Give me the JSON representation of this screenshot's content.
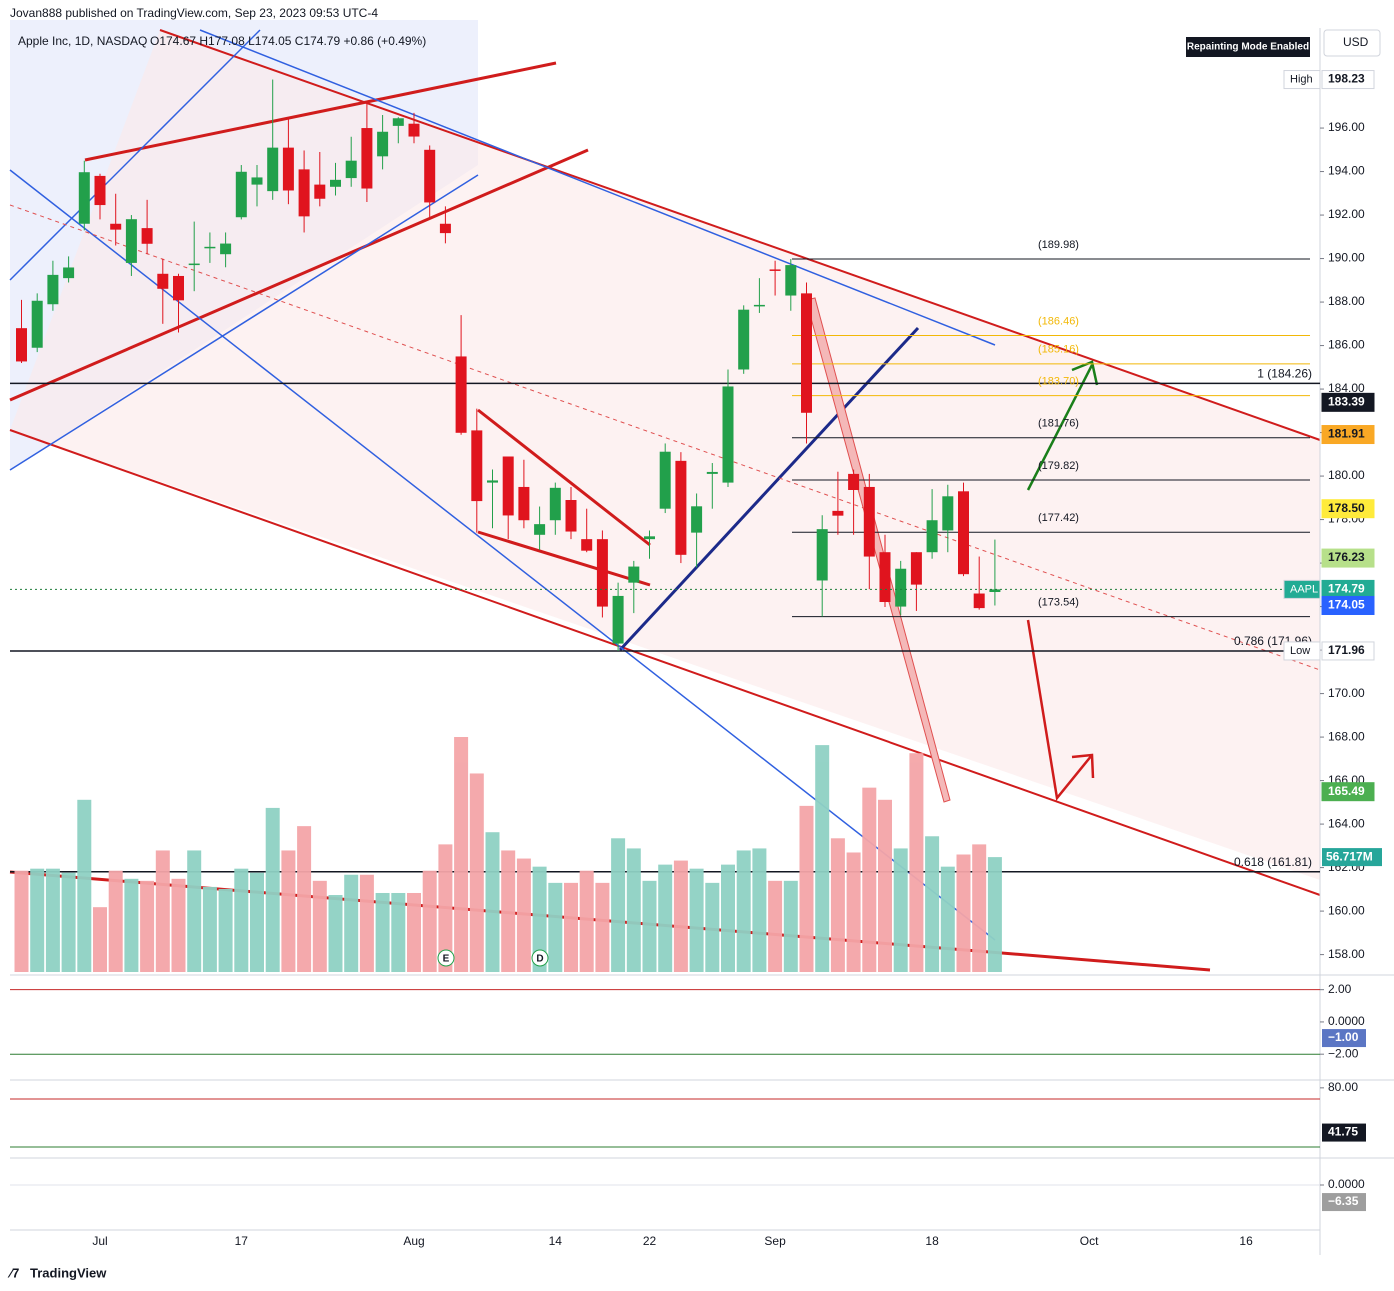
{
  "header": {
    "publisher": "Jovan888 published on TradingView.com, Sep 23, 2023 09:53 UTC-4",
    "symbol": "Apple Inc, 1D, NASDAQ",
    "ohlc": "O174.67 H177.08 L174.05 C174.79 +0.86 (+0.49%)",
    "badge": "Repainting Mode Enabled",
    "currency": "USD",
    "footer": "TradingView"
  },
  "chart_data": {
    "type": "candlestick",
    "up_color": "#22a04b",
    "down_color": "#e0141e",
    "volume_up_color": "#8fd1c4",
    "volume_down_color": "#f4a5a8",
    "categories": [
      null,
      null,
      null,
      null,
      null,
      "Jul",
      null,
      null,
      null,
      null,
      null,
      null,
      null,
      null,
      "17",
      null,
      null,
      null,
      null,
      null,
      null,
      null,
      null,
      null,
      null,
      "Aug",
      null,
      null,
      null,
      null,
      null,
      null,
      null,
      null,
      "14",
      null,
      null,
      null,
      null,
      null,
      "22",
      null,
      null,
      null,
      null,
      null,
      null,
      null,
      "Sep",
      null,
      null,
      null,
      null,
      null,
      null,
      null,
      null,
      null,
      "18",
      null,
      null,
      null,
      null,
      null,
      null,
      null,
      null,
      null,
      "Oct",
      null,
      null,
      null,
      null,
      null,
      null,
      null,
      null,
      null,
      "16"
    ],
    "open": [
      186.8,
      185.9,
      187.9,
      189.1,
      191.6,
      193.8,
      191.6,
      189.8,
      191.4,
      189.3,
      189.2,
      189.7,
      190.5,
      190.2,
      191.9,
      193.4,
      193.1,
      195.1,
      194.1,
      193.4,
      193.3,
      193.7,
      196.0,
      194.7,
      196.1,
      196.2,
      195.0,
      191.6,
      185.5,
      182.1,
      179.7,
      180.9,
      179.5,
      177.3,
      177.97,
      178.9,
      177.1,
      177.1,
      172.3,
      175.1,
      177.1,
      178.5,
      180.7,
      177.4,
      180.1,
      179.7,
      184.9,
      187.8,
      189.5,
      188.3,
      188.4,
      175.2,
      178.4,
      180.1,
      179.5,
      176.5,
      174.0,
      176.5,
      176.5,
      177.5,
      179.3,
      174.6,
      174.67,
      null,
      null,
      null,
      null,
      null,
      null,
      null,
      null,
      null,
      null,
      null,
      null,
      null,
      null,
      null,
      null
    ],
    "high": [
      188.1,
      188.4,
      189.9,
      190.1,
      194.5,
      193.9,
      192.98,
      192.0,
      192.7,
      189.99,
      189.3,
      191.7,
      191.2,
      191.2,
      194.3,
      194.3,
      198.23,
      196.5,
      194.97,
      194.9,
      194.4,
      195.6,
      197.2,
      196.6,
      196.5,
      196.7,
      195.2,
      192.4,
      187.4,
      183.1,
      180.3,
      180.9,
      180.75,
      178.6,
      179.7,
      179.5,
      178.5,
      177.5,
      175.1,
      176.1,
      177.5,
      181.5,
      181.1,
      179.2,
      180.6,
      184.9,
      187.85,
      189.1,
      189.9,
      189.98,
      188.9,
      178.2,
      180.2,
      180.3,
      180.1,
      177.3,
      176.1,
      176.5,
      179.4,
      179.6,
      179.7,
      176.3,
      177.08,
      null,
      null,
      null,
      null,
      null,
      null,
      null,
      null,
      null,
      null,
      null,
      null,
      null,
      null,
      null,
      null
    ],
    "low": [
      185.2,
      185.7,
      187.6,
      188.9,
      191.3,
      191.8,
      190.6,
      189.2,
      190.2,
      187.0,
      186.6,
      188.5,
      189.8,
      189.6,
      191.8,
      192.4,
      192.7,
      192.5,
      191.2,
      192.4,
      192.9,
      193.3,
      192.6,
      194.1,
      195.3,
      195.3,
      191.9,
      190.7,
      181.9,
      177.4,
      177.6,
      177.1,
      177.6,
      176.6,
      177.3,
      177.1,
      176.5,
      173.5,
      171.96,
      173.7,
      176.2,
      178.3,
      176.0,
      175.8,
      178.5,
      179.5,
      184.7,
      187.5,
      188.3,
      187.6,
      181.5,
      173.54,
      177.3,
      177.3,
      174.8,
      173.98,
      173.6,
      173.8,
      176.2,
      176.5,
      175.4,
      173.86,
      174.05,
      null,
      null,
      null,
      null,
      null,
      null,
      null,
      null,
      null,
      null,
      null,
      null,
      null,
      null,
      null,
      null
    ],
    "close": [
      185.27,
      188.06,
      189.25,
      189.59,
      193.97,
      192.46,
      191.33,
      191.81,
      190.68,
      188.61,
      188.08,
      189.77,
      190.54,
      190.69,
      193.99,
      193.73,
      195.1,
      193.13,
      191.94,
      192.75,
      193.62,
      194.5,
      193.22,
      195.83,
      196.45,
      195.61,
      192.58,
      191.17,
      181.99,
      178.85,
      179.8,
      178.19,
      177.97,
      177.79,
      179.46,
      177.45,
      176.57,
      174.0,
      174.49,
      175.84,
      177.23,
      181.12,
      176.38,
      178.61,
      180.19,
      184.12,
      187.65,
      187.87,
      189.46,
      189.7,
      182.91,
      177.56,
      178.18,
      179.36,
      176.3,
      174.21,
      175.74,
      175.01,
      177.97,
      179.07,
      175.49,
      173.93,
      174.79,
      null,
      null,
      null,
      null,
      null,
      null,
      null,
      null,
      null,
      null,
      null,
      null,
      null,
      null,
      null,
      null
    ],
    "volume": [
      50,
      51,
      51,
      49,
      85,
      32,
      50,
      46,
      45,
      60,
      46,
      60,
      42,
      41,
      51,
      49,
      81,
      60,
      72,
      45,
      38,
      48,
      48,
      39,
      39,
      39,
      50,
      63,
      116,
      98,
      69,
      60,
      56,
      52,
      44,
      44,
      50,
      44,
      66,
      61,
      45,
      53,
      55,
      51,
      44,
      53,
      60,
      61,
      45,
      45,
      82,
      112,
      66,
      59,
      91,
      85,
      61,
      108,
      67,
      52,
      58,
      63,
      56.717,
      null,
      null,
      null,
      null,
      null,
      null,
      null,
      null,
      null,
      null,
      null,
      null,
      null,
      null,
      null,
      null
    ],
    "volume_last_label": "56.717M",
    "ylim": [
      157.2,
      200.6
    ],
    "yticks": [
      {
        "value": 158,
        "label": "158.00"
      },
      {
        "value": 160,
        "label": "160.00"
      },
      {
        "value": 162,
        "label": "162.00"
      },
      {
        "value": 164,
        "label": "164.00"
      },
      {
        "value": 166,
        "label": "166.00"
      },
      {
        "value": 168,
        "label": "168.00"
      },
      {
        "value": 170,
        "label": "170.00"
      },
      {
        "value": 172,
        "label": "172.00"
      },
      {
        "value": 174,
        "label": "174.00"
      },
      {
        "value": 176,
        "label": "176.00"
      },
      {
        "value": 178,
        "label": "178.00"
      },
      {
        "value": 180,
        "label": "180.00"
      },
      {
        "value": 182,
        "label": "182.00"
      },
      {
        "value": 184,
        "label": "184.00"
      },
      {
        "value": 186,
        "label": "186.00"
      },
      {
        "value": 188,
        "label": "188.00"
      },
      {
        "value": 190,
        "label": "190.00"
      },
      {
        "value": 192,
        "label": "192.00"
      },
      {
        "value": 194,
        "label": "194.00"
      },
      {
        "value": 196,
        "label": "196.00"
      }
    ],
    "price_labels": [
      {
        "tag": "High",
        "value": 198.23,
        "label": "198.23",
        "color": "#ffffff",
        "text_color": "#131722"
      },
      {
        "value": 183.39,
        "label": "183.39",
        "color": "#131722",
        "text_color": "#ffffff"
      },
      {
        "value": 181.91,
        "label": "181.91",
        "color": "#f9a825",
        "text_color": "#131722"
      },
      {
        "value": 178.5,
        "label": "178.50",
        "color": "#ffeb3b",
        "text_color": "#131722"
      },
      {
        "value": 176.23,
        "label": "176.23",
        "color": "#b7e08a",
        "text_color": "#131722"
      },
      {
        "tag": "AAPL",
        "value": 174.79,
        "label": "174.79",
        "color": "#22ab94",
        "text_color": "#ffffff"
      },
      {
        "value": 174.05,
        "label": "174.05",
        "color": "#2962ff",
        "text_color": "#ffffff"
      },
      {
        "tag": "Low",
        "value": 171.96,
        "label": "171.96",
        "color": "#ffffff",
        "text_color": "#131722"
      },
      {
        "value": 165.49,
        "label": "165.49",
        "color": "#4caf50",
        "text_color": "#ffffff"
      }
    ],
    "fib_levels": [
      {
        "value": 189.98,
        "label": "(189.98)",
        "color": "#131722"
      },
      {
        "value": 186.46,
        "label": "(186.46)",
        "color": "#f2b807"
      },
      {
        "value": 185.16,
        "label": "(185.16)",
        "color": "#f2b807"
      },
      {
        "value": 183.7,
        "label": "(183.70)",
        "color": "#f2b807"
      },
      {
        "value": 181.76,
        "label": "(181.76)",
        "color": "#131722"
      },
      {
        "value": 179.82,
        "label": "(179.82)",
        "color": "#131722"
      },
      {
        "value": 177.42,
        "label": "(177.42)",
        "color": "#131722"
      },
      {
        "value": 173.54,
        "label": "(173.54)",
        "color": "#131722"
      }
    ],
    "key_levels": [
      {
        "value": 184.26,
        "label": "1 (184.26)"
      },
      {
        "value": 171.96,
        "label": "0.786 (171.96)"
      },
      {
        "value": 161.81,
        "label": "0.618 (161.81)"
      }
    ],
    "events": [
      "E",
      "D"
    ],
    "panes": [
      {
        "ylim": [
          -3.6,
          2.6
        ],
        "yticks": [
          {
            "value": 2,
            "label": "2.00"
          },
          {
            "value": 0,
            "label": "0.0000"
          },
          {
            "value": -2,
            "label": "−2.00"
          }
        ],
        "last": {
          "value": -1,
          "label": "−1.00"
        },
        "color": "#5b76c4"
      },
      {
        "ylim": [
          20,
          85
        ],
        "yticks": [
          {
            "value": 80,
            "label": "80.00"
          }
        ],
        "last": {
          "value": 41.75,
          "label": "41.75"
        },
        "color": "#131722"
      },
      {
        "ylim": [
          -16,
          9.3
        ],
        "yticks": [
          {
            "value": 0,
            "label": "0.0000"
          }
        ],
        "last": {
          "value": -6.35,
          "label": "−6.35"
        },
        "color": "#9e9e9e"
      }
    ]
  }
}
